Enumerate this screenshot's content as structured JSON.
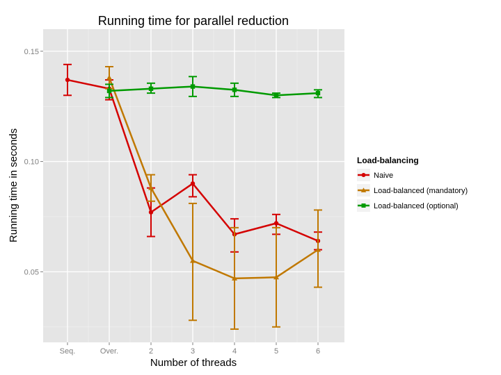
{
  "chart_data": {
    "type": "line",
    "title": "Running time for parallel reduction",
    "xlabel": "Number of threads",
    "ylabel": "Running time in seconds",
    "categories": [
      "Seq.",
      "Over.",
      "2",
      "3",
      "4",
      "5",
      "6"
    ],
    "ylim": [
      0.018,
      0.16
    ],
    "yticks": [
      0.05,
      0.1,
      0.15
    ],
    "ytick_labels": [
      "0.05",
      "0.10",
      "0.15"
    ],
    "grid": true,
    "legend_title": "Load-balancing",
    "legend_position": "right",
    "series": [
      {
        "name": "Naive",
        "color": "#d40000",
        "marker": "circle",
        "x": [
          "Seq.",
          "Over.",
          "2",
          "3",
          "4",
          "5",
          "6"
        ],
        "values": [
          0.137,
          0.133,
          0.077,
          0.09,
          0.067,
          0.072,
          0.064
        ],
        "err_low": [
          0.13,
          0.128,
          0.066,
          0.084,
          0.059,
          0.067,
          0.06
        ],
        "err_high": [
          0.144,
          0.137,
          0.088,
          0.094,
          0.074,
          0.076,
          0.068
        ]
      },
      {
        "name": "Load-balanced (mandatory)",
        "color": "#c07800",
        "marker": "triangle",
        "x": [
          "Over.",
          "2",
          "3",
          "4",
          "5",
          "6"
        ],
        "values": [
          0.138,
          0.088,
          0.055,
          0.047,
          0.0475,
          0.06
        ],
        "err_low": [
          0.133,
          0.082,
          0.028,
          0.024,
          0.025,
          0.043
        ],
        "err_high": [
          0.143,
          0.094,
          0.081,
          0.07,
          0.07,
          0.078
        ]
      },
      {
        "name": "Load-balanced (optional)",
        "color": "#009a00",
        "marker": "square",
        "x": [
          "Over.",
          "2",
          "3",
          "4",
          "5",
          "6"
        ],
        "values": [
          0.132,
          0.133,
          0.134,
          0.1325,
          0.13,
          0.131
        ],
        "err_low": [
          0.129,
          0.131,
          0.1295,
          0.1295,
          0.129,
          0.129
        ],
        "err_high": [
          0.135,
          0.1355,
          0.1385,
          0.1355,
          0.131,
          0.1325
        ]
      }
    ]
  }
}
